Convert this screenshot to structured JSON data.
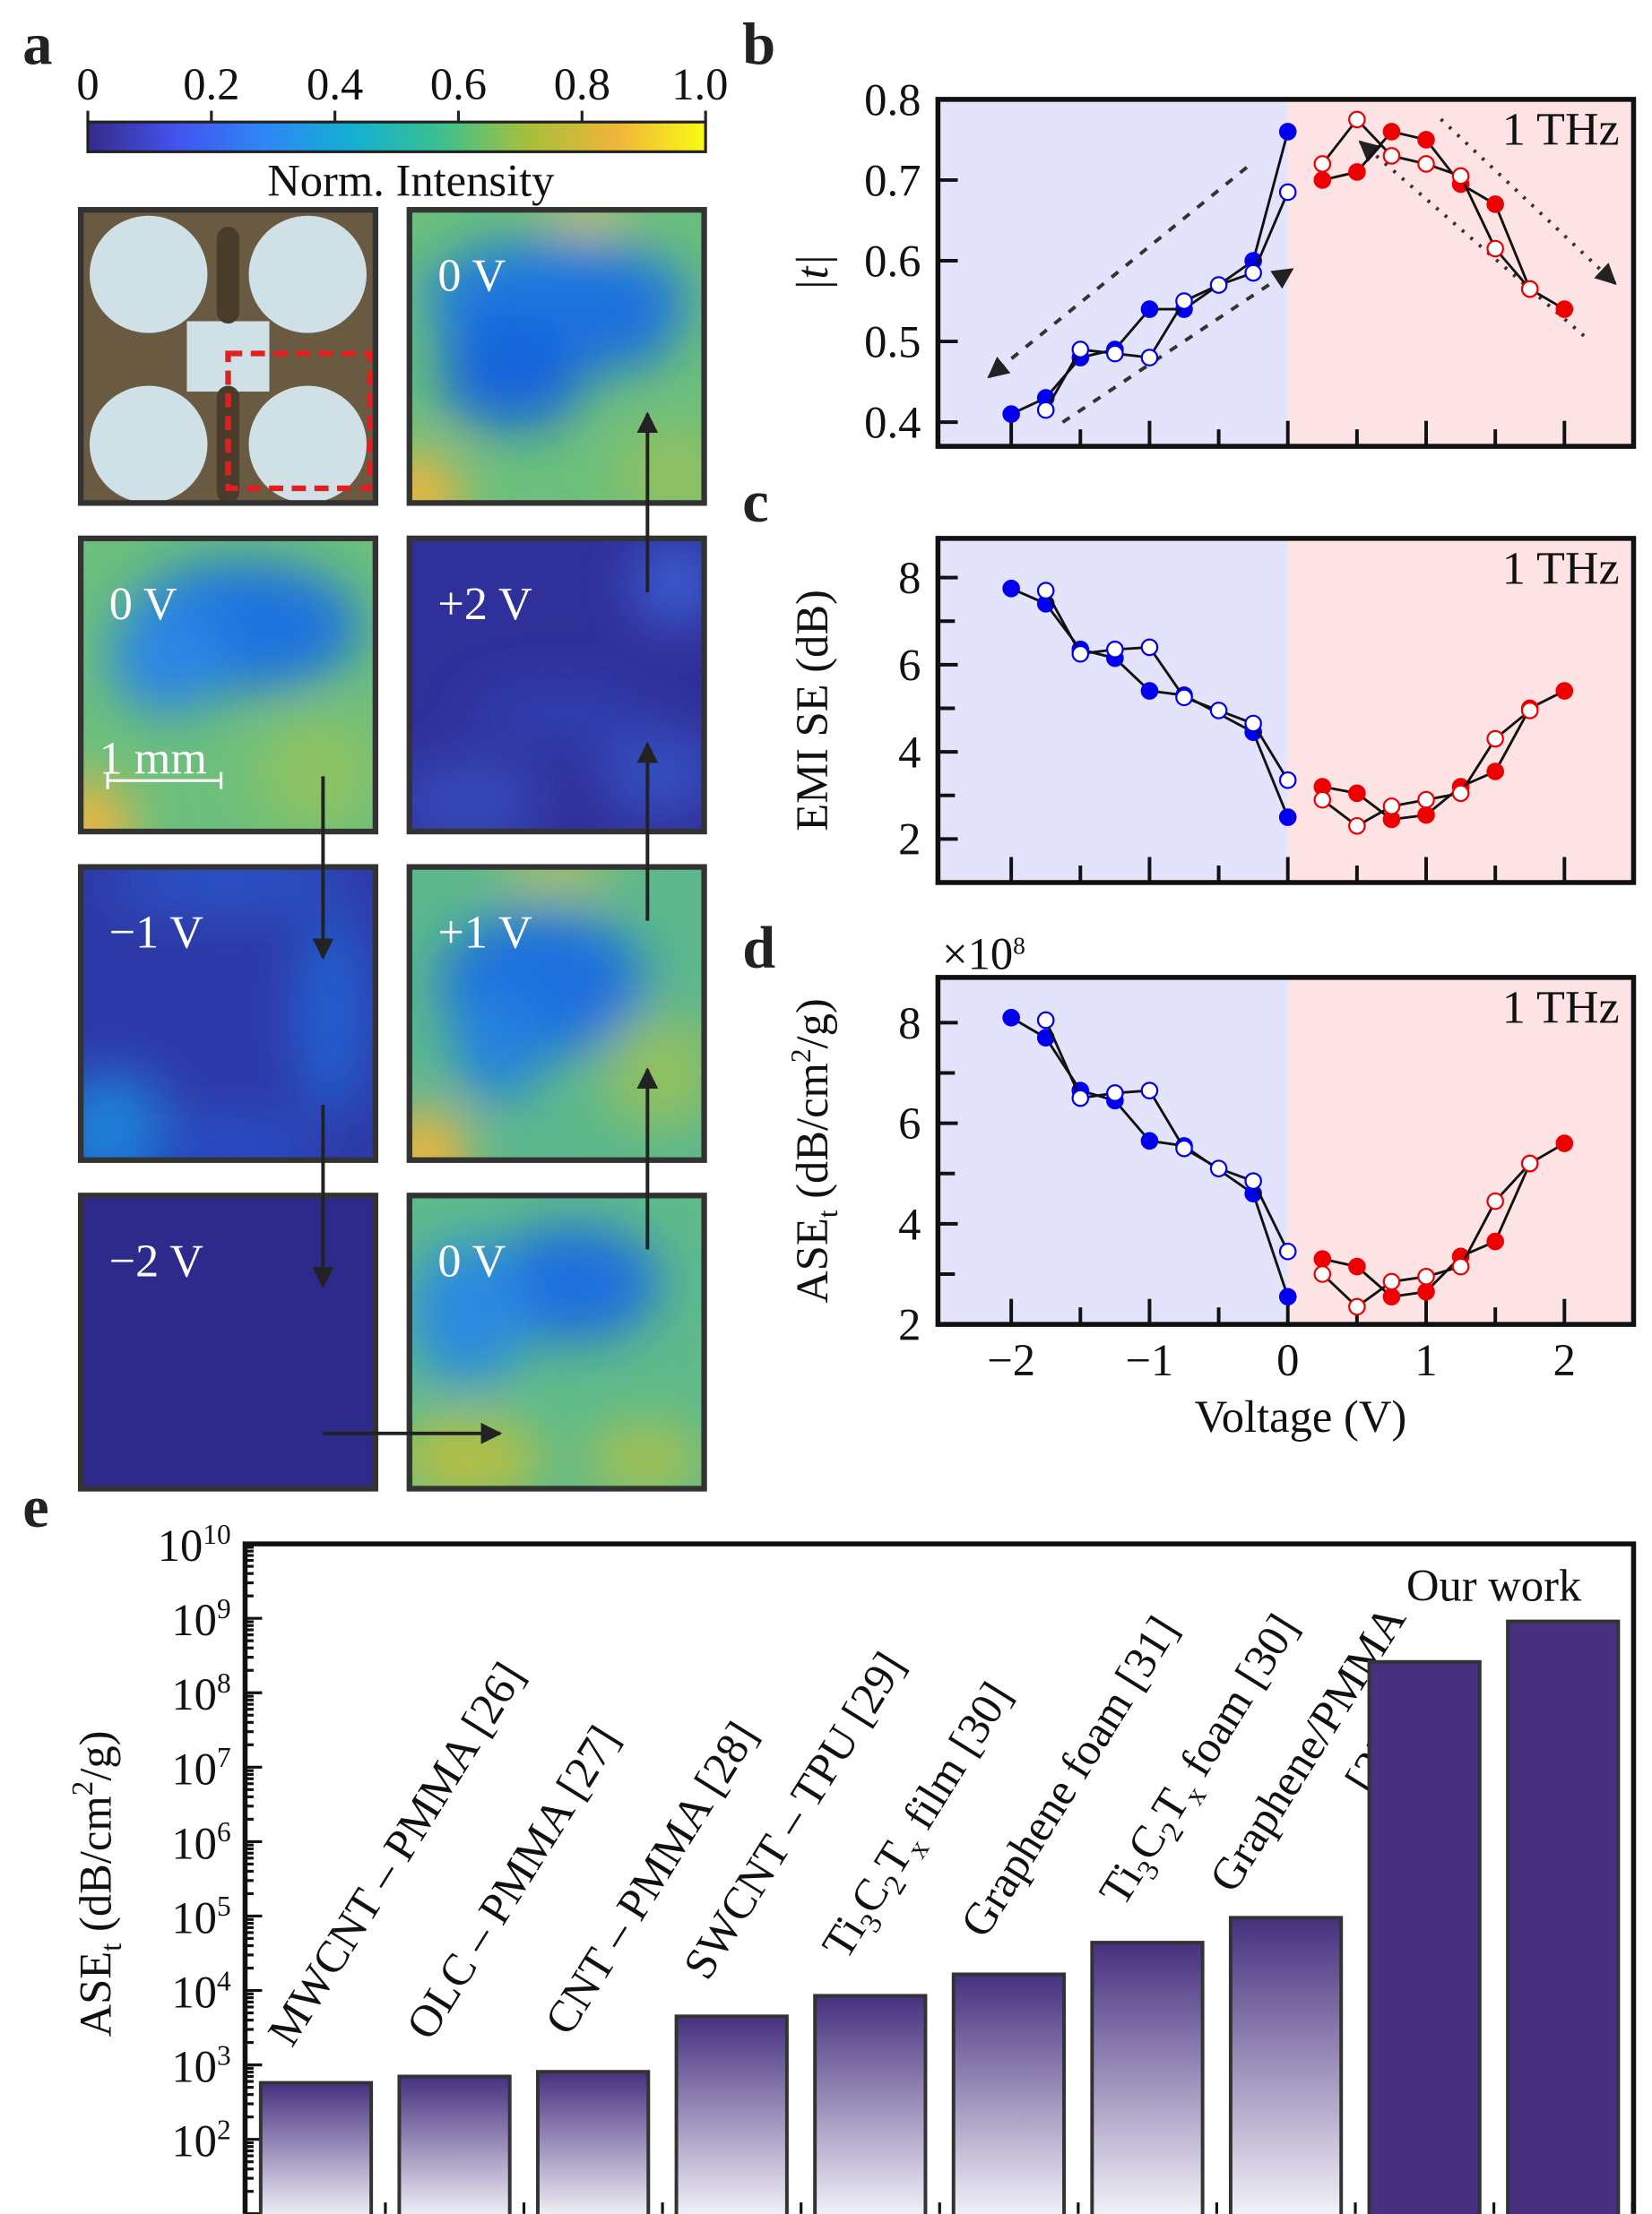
{
  "panel_labels": {
    "a": "a",
    "b": "b",
    "c": "c",
    "d": "d",
    "e": "e"
  },
  "panel_a": {
    "colorbar": {
      "ticks": [
        "0",
        "0.2",
        "0.4",
        "0.6",
        "0.8",
        "1.0"
      ],
      "label": "Norm. Intensity",
      "colors": [
        "#352a87",
        "#4353f0",
        "#2d87f5",
        "#13b0d2",
        "#3cc08e",
        "#a7bf3a",
        "#f0b53a",
        "#f9fb14"
      ]
    },
    "tiles": [
      {
        "label": ""
      },
      {
        "label": "0 V"
      },
      {
        "label": "0 V"
      },
      {
        "label": "+2 V"
      },
      {
        "label": "−1 V"
      },
      {
        "label": "+1 V"
      },
      {
        "label": "−2 V"
      },
      {
        "label": "0 V"
      }
    ],
    "scale_bar": "1 mm",
    "highlight_color": "#e02020"
  },
  "chart_data": [
    {
      "panel": "b",
      "type": "line",
      "annotation": "1 THz",
      "ylabel": "|t|",
      "xlim": [
        -2.53,
        2.5
      ],
      "ylim": [
        0.37,
        0.8
      ],
      "yticks": [
        "0.4",
        "0.5",
        "0.6",
        "0.7",
        "0.8"
      ],
      "ytick_values": [
        0.4,
        0.5,
        0.6,
        0.7,
        0.8
      ],
      "background": {
        "negative": "#e3e3fb",
        "positive": "#fde3e4"
      },
      "series": [
        {
          "color": "#0000ee",
          "filled": true,
          "x": [
            -2,
            -1.75,
            -1.5,
            -1.25,
            -1,
            -0.75,
            -0.25,
            0
          ],
          "y": [
            0.41,
            0.43,
            0.48,
            0.49,
            0.54,
            0.54,
            0.6,
            0.76
          ]
        },
        {
          "color": "#0000ee",
          "filled": false,
          "x": [
            -1.75,
            -1.5,
            -1.25,
            -1,
            -0.75,
            -0.5,
            -0.25,
            0
          ],
          "y": [
            0.415,
            0.49,
            0.485,
            0.48,
            0.55,
            0.57,
            0.585,
            0.685
          ]
        },
        {
          "color": "#ee0000",
          "filled": true,
          "x": [
            0.25,
            0.5,
            0.75,
            1,
            1.25,
            1.5,
            1.75,
            2
          ],
          "y": [
            0.7,
            0.71,
            0.76,
            0.75,
            0.695,
            0.67,
            0.565,
            0.54
          ]
        },
        {
          "color": "#ee0000",
          "filled": false,
          "x": [
            0.25,
            0.5,
            0.75,
            1,
            1.25,
            1.5,
            1.75
          ],
          "y": [
            0.72,
            0.775,
            0.73,
            0.72,
            0.705,
            0.615,
            0.565
          ]
        }
      ]
    },
    {
      "panel": "c",
      "type": "line",
      "annotation": "1 THz",
      "ylabel": "EMI SE (dB)",
      "xlim": [
        -2.53,
        2.5
      ],
      "ylim": [
        1.0,
        8.9
      ],
      "yticks": [
        "2",
        "4",
        "6",
        "8"
      ],
      "ytick_values": [
        2,
        4,
        6,
        8
      ],
      "background": {
        "negative": "#e3e3fb",
        "positive": "#fde3e4"
      },
      "series": [
        {
          "color": "#0000ee",
          "filled": true,
          "x": [
            -2,
            -1.75,
            -1.5,
            -1.25,
            -1,
            -0.75,
            -0.25,
            0
          ],
          "y": [
            7.75,
            7.4,
            6.35,
            6.15,
            5.4,
            5.3,
            4.45,
            2.5
          ]
        },
        {
          "color": "#0000ee",
          "filled": false,
          "x": [
            -1.75,
            -1.5,
            -1.25,
            -1,
            -0.75,
            -0.5,
            -0.25,
            0
          ],
          "y": [
            7.7,
            6.25,
            6.35,
            6.4,
            5.25,
            4.95,
            4.65,
            3.35
          ]
        },
        {
          "color": "#ee0000",
          "filled": true,
          "x": [
            0.25,
            0.5,
            0.75,
            1,
            1.25,
            1.5,
            1.75,
            2
          ],
          "y": [
            3.2,
            3.05,
            2.45,
            2.55,
            3.2,
            3.55,
            5.0,
            5.4
          ]
        },
        {
          "color": "#ee0000",
          "filled": false,
          "x": [
            0.25,
            0.5,
            0.75,
            1,
            1.25,
            1.5,
            1.75
          ],
          "y": [
            2.9,
            2.3,
            2.75,
            2.9,
            3.05,
            4.3,
            4.95
          ]
        }
      ]
    },
    {
      "panel": "d",
      "type": "line",
      "annotation": "1 THz",
      "ylabel": [
        {
          "t": "ASE"
        },
        {
          "sub": "t"
        },
        {
          "t": " (dB/cm"
        },
        {
          "sup": "2"
        },
        {
          "t": "/g)"
        }
      ],
      "multiplier": [
        {
          "t": "×10"
        },
        {
          "sup": "8"
        }
      ],
      "xlabel": "Voltage (V)",
      "xlim": [
        -2.53,
        2.5
      ],
      "ylim": [
        2.0,
        8.9
      ],
      "xticks": [
        "−2",
        "−1",
        "0",
        "1",
        "2"
      ],
      "xtick_values": [
        -2,
        -1,
        0,
        1,
        2
      ],
      "yticks": [
        "2",
        "4",
        "6",
        "8"
      ],
      "ytick_values": [
        2,
        4,
        6,
        8
      ],
      "background": {
        "negative": "#e3e3fb",
        "positive": "#fde3e4"
      },
      "series": [
        {
          "color": "#0000ee",
          "filled": true,
          "x": [
            -2,
            -1.75,
            -1.5,
            -1.25,
            -1,
            -0.75,
            -0.25,
            0
          ],
          "y": [
            8.1,
            7.7,
            6.65,
            6.45,
            5.65,
            5.55,
            4.6,
            2.55
          ]
        },
        {
          "color": "#0000ee",
          "filled": false,
          "x": [
            -1.75,
            -1.5,
            -1.25,
            -1,
            -0.75,
            -0.5,
            -0.25,
            0
          ],
          "y": [
            8.05,
            6.5,
            6.6,
            6.65,
            5.5,
            5.1,
            4.85,
            3.45
          ]
        },
        {
          "color": "#ee0000",
          "filled": true,
          "x": [
            0.25,
            0.5,
            0.75,
            1,
            1.25,
            1.5,
            1.75,
            2
          ],
          "y": [
            3.3,
            3.15,
            2.55,
            2.65,
            3.35,
            3.65,
            5.2,
            5.6
          ]
        },
        {
          "color": "#ee0000",
          "filled": false,
          "x": [
            0.25,
            0.5,
            0.75,
            1,
            1.25,
            1.5,
            1.75
          ],
          "y": [
            3.0,
            2.35,
            2.85,
            2.95,
            3.15,
            4.45,
            5.2
          ]
        }
      ]
    },
    {
      "panel": "e",
      "type": "bar",
      "yscale": "log",
      "ylim": [
        10,
        10000000000.0
      ],
      "ylabel": [
        {
          "t": "ASE"
        },
        {
          "sub": "t"
        },
        {
          "t": " (dB/cm"
        },
        {
          "sup": "2"
        },
        {
          "t": "/g)"
        }
      ],
      "ytick_exponents": [
        "2",
        "3",
        "4",
        "5",
        "6",
        "7",
        "8",
        "9",
        "10"
      ],
      "bar_color": "#46307f",
      "categories": [
        [
          {
            "t": "MWCNT – PMMA [26]"
          }
        ],
        [
          {
            "t": "OLC – PMMA [27]"
          }
        ],
        [
          {
            "t": "CNT – PMMA [28]"
          }
        ],
        [
          {
            "t": "SWCNT – TPU [29]"
          }
        ],
        [
          {
            "t": "Ti"
          },
          {
            "sub": "3"
          },
          {
            "t": "C"
          },
          {
            "sub": "2"
          },
          {
            "t": "T"
          },
          {
            "sub": "x"
          },
          {
            "t": " film [30]"
          }
        ],
        [
          {
            "t": "Graphene foam [31]"
          }
        ],
        [
          {
            "t": "Ti"
          },
          {
            "sub": "3"
          },
          {
            "t": "C"
          },
          {
            "sub": "2"
          },
          {
            "t": "T"
          },
          {
            "sub": "x"
          },
          {
            "t": " foam [30]"
          }
        ],
        [
          {
            "t": "Graphene/PMMA"
          },
          {
            "br": "[33]"
          }
        ],
        [],
        []
      ],
      "group_label": "Our work",
      "values": [
        575,
        700,
        810,
        4500,
        8500,
        16500,
        44000,
        95000,
        260000000,
        910000000
      ],
      "gradient": [
        true,
        true,
        true,
        true,
        true,
        true,
        true,
        true,
        false,
        false
      ]
    }
  ]
}
